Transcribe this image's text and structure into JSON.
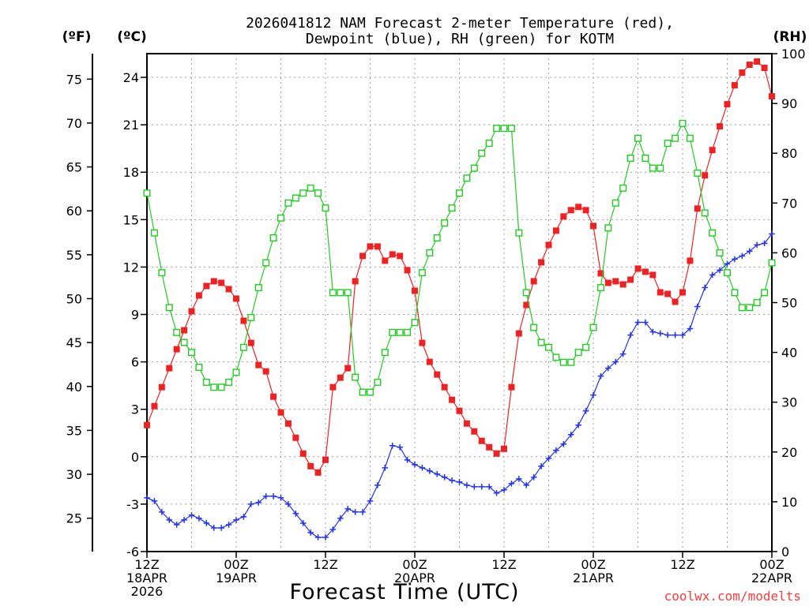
{
  "chart_data": {
    "type": "line",
    "title_line1": "2026041812 NAM Forecast 2-meter Temperature (red),",
    "title_line2": "Dewpoint (blue), RH (green) for KOTM",
    "xlabel": "Forecast Time (UTC)",
    "credit": "coolwx.com/modelts",
    "units": {
      "fahrenheit": "(ºF)",
      "celsius": "(ºC)",
      "rh": "(RH)"
    },
    "x_range_hours": [
      0,
      84
    ],
    "x_ticks": [
      {
        "hour": 0,
        "lines": [
          "12Z",
          "18APR",
          "2026"
        ]
      },
      {
        "hour": 12,
        "lines": [
          "00Z",
          "19APR"
        ]
      },
      {
        "hour": 24,
        "lines": [
          "12Z"
        ]
      },
      {
        "hour": 36,
        "lines": [
          "00Z",
          "20APR"
        ]
      },
      {
        "hour": 48,
        "lines": [
          "12Z"
        ]
      },
      {
        "hour": 60,
        "lines": [
          "00Z",
          "21APR"
        ]
      },
      {
        "hour": 72,
        "lines": [
          "12Z"
        ]
      },
      {
        "hour": 84,
        "lines": [
          "00Z",
          "22APR"
        ]
      }
    ],
    "celsius_axis": {
      "range": [
        -6,
        25.5
      ],
      "ticks": [
        "-6",
        "-3",
        "0",
        "3",
        "6",
        "9",
        "12",
        "15",
        "18",
        "21",
        "24"
      ]
    },
    "fahrenheit_axis": {
      "ticks": [
        "25",
        "30",
        "35",
        "40",
        "45",
        "50",
        "55",
        "60",
        "65",
        "70",
        "75"
      ]
    },
    "rh_axis": {
      "range": [
        0,
        100
      ],
      "ticks": [
        "0",
        "10",
        "20",
        "30",
        "40",
        "50",
        "60",
        "70",
        "80",
        "90",
        "100"
      ]
    },
    "series": [
      {
        "name": "Temperature",
        "unit": "C",
        "color": "#ee2222",
        "marker": "filled-square",
        "hours": [
          0,
          1,
          2,
          3,
          4,
          5,
          6,
          7,
          8,
          9,
          10,
          11,
          12,
          13,
          14,
          15,
          16,
          17,
          18,
          19,
          20,
          21,
          22,
          23,
          24,
          25,
          26,
          27,
          28,
          29,
          30,
          31,
          32,
          33,
          34,
          35,
          36,
          37,
          38,
          39,
          40,
          41,
          42,
          43,
          44,
          45,
          46,
          47,
          48,
          49,
          50,
          51,
          52,
          53,
          54,
          55,
          56,
          57,
          58,
          59,
          60,
          61,
          62,
          63,
          64,
          65,
          66,
          67,
          68,
          69,
          70,
          71,
          72,
          73,
          74,
          75,
          76,
          77,
          78,
          79,
          80,
          81,
          82,
          83,
          84
        ],
        "values": [
          2.0,
          3.2,
          4.4,
          5.6,
          6.8,
          8.0,
          9.2,
          10.2,
          10.8,
          11.1,
          11.0,
          10.6,
          10.0,
          8.6,
          7.2,
          5.8,
          5.4,
          3.8,
          2.8,
          2.1,
          1.2,
          0.2,
          -0.6,
          -1.0,
          -0.2,
          4.4,
          5.0,
          5.6,
          11.1,
          12.7,
          13.3,
          13.3,
          12.4,
          12.8,
          12.7,
          11.8,
          10.5,
          7.2,
          6.0,
          5.2,
          4.4,
          3.6,
          2.9,
          2.1,
          1.6,
          1.0,
          0.6,
          0.2,
          0.5,
          4.4,
          7.8,
          9.6,
          11.1,
          12.3,
          13.4,
          14.3,
          15.2,
          15.6,
          15.8,
          15.6,
          14.6,
          11.6,
          11.0,
          11.1,
          10.9,
          11.2,
          11.9,
          11.7,
          11.5,
          10.4,
          10.3,
          9.8,
          10.4,
          12.4,
          15.7,
          17.8,
          19.4,
          20.9,
          22.3,
          23.5,
          24.3,
          24.8,
          25.0,
          24.6,
          22.8
        ]
      },
      {
        "name": "Dewpoint",
        "unit": "C",
        "color": "#2233ee",
        "marker": "plus",
        "hours": [
          0,
          1,
          2,
          3,
          4,
          5,
          6,
          7,
          8,
          9,
          10,
          11,
          12,
          13,
          14,
          15,
          16,
          17,
          18,
          19,
          20,
          21,
          22,
          23,
          24,
          25,
          26,
          27,
          28,
          29,
          30,
          31,
          32,
          33,
          34,
          35,
          36,
          37,
          38,
          39,
          40,
          41,
          42,
          43,
          44,
          45,
          46,
          47,
          48,
          49,
          50,
          51,
          52,
          53,
          54,
          55,
          56,
          57,
          58,
          59,
          60,
          61,
          62,
          63,
          64,
          65,
          66,
          67,
          68,
          69,
          70,
          71,
          72,
          73,
          74,
          75,
          76,
          77,
          78,
          79,
          80,
          81,
          82,
          83,
          84
        ],
        "values": [
          -2.6,
          -2.8,
          -3.5,
          -4.0,
          -4.3,
          -4.0,
          -3.7,
          -3.9,
          -4.2,
          -4.5,
          -4.5,
          -4.3,
          -4.0,
          -3.8,
          -3.0,
          -2.9,
          -2.5,
          -2.5,
          -2.6,
          -3.0,
          -3.6,
          -4.2,
          -4.8,
          -5.1,
          -5.1,
          -4.6,
          -3.9,
          -3.3,
          -3.5,
          -3.5,
          -2.8,
          -1.8,
          -0.7,
          0.7,
          0.6,
          -0.2,
          -0.5,
          -0.7,
          -0.9,
          -1.1,
          -1.3,
          -1.5,
          -1.6,
          -1.8,
          -1.9,
          -1.9,
          -1.9,
          -2.3,
          -2.1,
          -1.7,
          -1.4,
          -1.8,
          -1.3,
          -0.6,
          -0.1,
          0.4,
          0.8,
          1.4,
          2.0,
          2.9,
          3.9,
          5.1,
          5.6,
          6.0,
          6.5,
          7.7,
          8.5,
          8.5,
          7.9,
          7.8,
          7.7,
          7.7,
          7.7,
          8.1,
          9.5,
          10.7,
          11.5,
          11.8,
          12.2,
          12.5,
          12.7,
          13.0,
          13.4,
          13.5,
          14.1
        ]
      },
      {
        "name": "RH",
        "unit": "%",
        "color": "#22cc22",
        "marker": "open-square",
        "hours": [
          0,
          1,
          2,
          3,
          4,
          5,
          6,
          7,
          8,
          9,
          10,
          11,
          12,
          13,
          14,
          15,
          16,
          17,
          18,
          19,
          20,
          21,
          22,
          23,
          24,
          25,
          26,
          27,
          28,
          29,
          30,
          31,
          32,
          33,
          34,
          35,
          36,
          37,
          38,
          39,
          40,
          41,
          42,
          43,
          44,
          45,
          46,
          47,
          48,
          49,
          50,
          51,
          52,
          53,
          54,
          55,
          56,
          57,
          58,
          59,
          60,
          61,
          62,
          63,
          64,
          65,
          66,
          67,
          68,
          69,
          70,
          71,
          72,
          73,
          74,
          75,
          76,
          77,
          78,
          79,
          80,
          81,
          82,
          83,
          84
        ],
        "values": [
          72,
          64,
          56,
          49,
          44,
          42,
          40,
          37,
          34,
          33,
          33,
          34,
          36,
          41,
          47,
          53,
          58,
          63,
          67,
          70,
          71,
          72,
          73,
          72,
          69,
          52,
          52,
          52,
          35,
          32,
          32,
          34,
          40,
          44,
          44,
          44,
          46,
          56,
          60,
          63,
          66,
          69,
          72,
          75,
          77,
          80,
          82,
          85,
          85,
          85,
          64,
          52,
          45,
          42,
          41,
          39,
          38,
          38,
          40,
          41,
          45,
          53,
          65,
          70,
          73,
          79,
          83,
          79,
          77,
          77,
          82,
          83,
          86,
          83,
          76,
          68,
          64,
          60,
          56,
          52,
          49,
          49,
          50,
          52,
          58
        ]
      }
    ]
  }
}
